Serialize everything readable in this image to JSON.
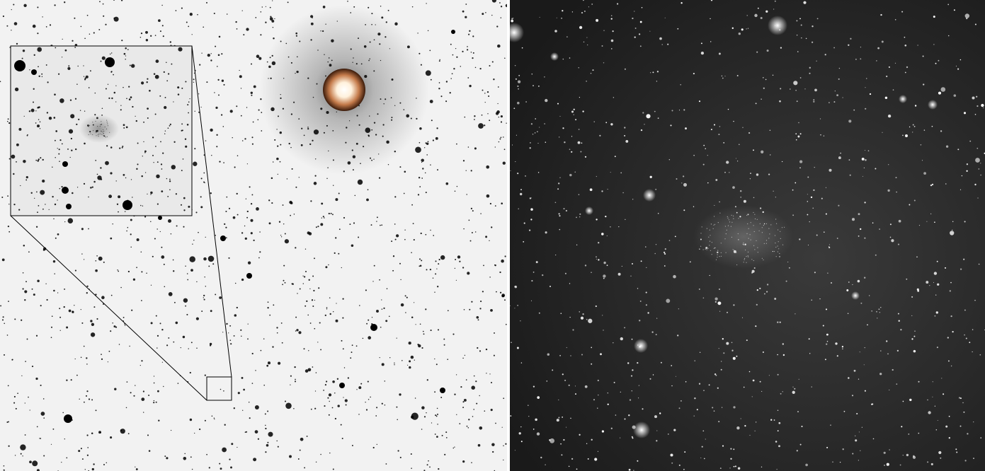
{
  "figure": {
    "left_panel": {
      "style": "inverted-greyscale-sky-image",
      "background": "#f2f2f2",
      "star_color": "#000000",
      "bright_star_core": "#fff6e6",
      "bright_star_halo": "#b86a3a",
      "has_zoom_inset": true
    },
    "right_panel": {
      "style": "color-deep-sky-image",
      "background": "#232323",
      "star_color": "#ffffff"
    }
  }
}
